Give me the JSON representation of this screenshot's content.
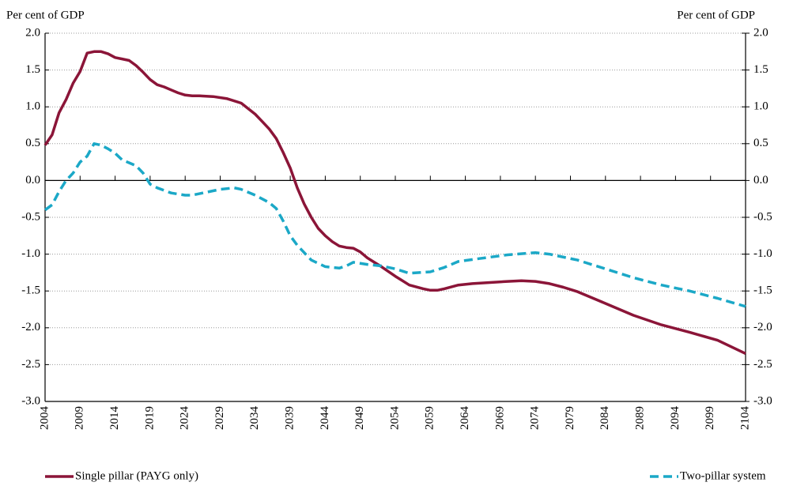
{
  "chart_data": {
    "type": "line",
    "y_label": "Per cent of GDP",
    "y2_label": "Per cent of GDP",
    "xlim": [
      2004,
      2104
    ],
    "xticks": [
      2004,
      2009,
      2014,
      2019,
      2024,
      2029,
      2034,
      2039,
      2044,
      2049,
      2054,
      2059,
      2064,
      2069,
      2074,
      2079,
      2084,
      2089,
      2094,
      2099,
      2104
    ],
    "ylim": [
      -3,
      2
    ],
    "yticks": [
      {
        "value": 2,
        "label": "2.0"
      },
      1.5,
      {
        "value": 1,
        "label": "1.0"
      },
      0.5,
      {
        "value": 0,
        "label": "0.0"
      },
      -0.5,
      {
        "value": -1,
        "label": "-1.0"
      },
      -1.5,
      {
        "value": -2,
        "label": "-2.0"
      },
      -2.5,
      {
        "value": -3,
        "label": "-3.0"
      }
    ],
    "y2lim": [
      -3,
      2
    ],
    "y2ticks": [
      {
        "value": 2,
        "label": "2.0"
      },
      1.5,
      {
        "value": 1,
        "label": "1.0"
      },
      0.5,
      {
        "value": 0,
        "label": "0.0"
      },
      -0.5,
      {
        "value": -1,
        "label": "-1.0"
      },
      -1.5,
      {
        "value": -2,
        "label": "-2.0"
      },
      -2.5,
      {
        "value": -3,
        "label": "-3.0"
      }
    ],
    "grid": true,
    "legend": "bottom",
    "series": [
      {
        "name": "Single pillar (PAYG only)",
        "color": "#8b1538",
        "dash": false,
        "x": [
          2004,
          2005,
          2006,
          2007,
          2008,
          2009,
          2010,
          2011,
          2012,
          2013,
          2014,
          2015,
          2016,
          2017,
          2018,
          2019,
          2020,
          2021,
          2022,
          2023,
          2024,
          2025,
          2026,
          2028,
          2030,
          2032,
          2034,
          2035,
          2036,
          2037,
          2038,
          2039,
          2040,
          2041,
          2042,
          2043,
          2044,
          2045,
          2046,
          2047,
          2048,
          2049,
          2050,
          2051,
          2052,
          2054,
          2056,
          2058,
          2059,
          2060,
          2061,
          2063,
          2065,
          2070,
          2072,
          2074,
          2076,
          2078,
          2080,
          2084,
          2088,
          2092,
          2096,
          2100,
          2104
        ],
        "values": [
          0.48,
          0.62,
          0.92,
          1.1,
          1.32,
          1.48,
          1.73,
          1.75,
          1.75,
          1.72,
          1.67,
          1.65,
          1.63,
          1.56,
          1.47,
          1.37,
          1.3,
          1.27,
          1.23,
          1.19,
          1.16,
          1.15,
          1.15,
          1.14,
          1.11,
          1.05,
          0.9,
          0.8,
          0.7,
          0.57,
          0.38,
          0.17,
          -0.1,
          -0.32,
          -0.5,
          -0.65,
          -0.75,
          -0.83,
          -0.89,
          -0.91,
          -0.92,
          -0.97,
          -1.05,
          -1.11,
          -1.17,
          -1.3,
          -1.42,
          -1.47,
          -1.49,
          -1.49,
          -1.47,
          -1.42,
          -1.4,
          -1.37,
          -1.36,
          -1.37,
          -1.4,
          -1.45,
          -1.51,
          -1.67,
          -1.83,
          -1.96,
          -2.06,
          -2.17,
          -2.35
        ]
      },
      {
        "name": "Two-pillar system",
        "color": "#1ba8c7",
        "dash": true,
        "x": [
          2004,
          2005,
          2006,
          2007,
          2008,
          2009,
          2010,
          2011,
          2012,
          2013,
          2014,
          2015,
          2016,
          2017,
          2018,
          2019,
          2020,
          2022,
          2024,
          2025,
          2027,
          2029,
          2031,
          2032,
          2034,
          2036,
          2037,
          2038,
          2039,
          2040,
          2042,
          2044,
          2046,
          2047,
          2048,
          2050,
          2052,
          2054,
          2056,
          2059,
          2061,
          2063,
          2066,
          2070,
          2074,
          2076,
          2080,
          2084,
          2088,
          2092,
          2096,
          2100,
          2104
        ],
        "values": [
          -0.4,
          -0.33,
          -0.15,
          0.0,
          0.1,
          0.25,
          0.33,
          0.5,
          0.48,
          0.43,
          0.37,
          0.28,
          0.24,
          0.2,
          0.1,
          -0.05,
          -0.1,
          -0.17,
          -0.2,
          -0.2,
          -0.16,
          -0.12,
          -0.1,
          -0.12,
          -0.2,
          -0.3,
          -0.38,
          -0.55,
          -0.75,
          -0.88,
          -1.08,
          -1.17,
          -1.19,
          -1.16,
          -1.11,
          -1.14,
          -1.16,
          -1.2,
          -1.26,
          -1.24,
          -1.18,
          -1.1,
          -1.06,
          -1.01,
          -0.98,
          -1.0,
          -1.08,
          -1.2,
          -1.32,
          -1.42,
          -1.5,
          -1.6,
          -1.71
        ]
      }
    ]
  }
}
